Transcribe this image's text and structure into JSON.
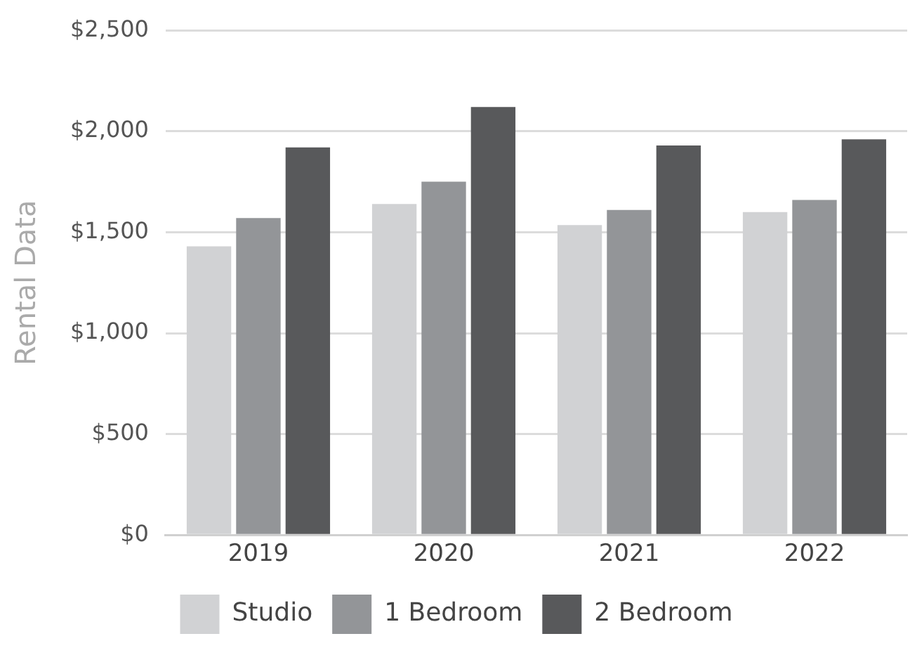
{
  "chart_data": {
    "type": "bar",
    "ylabel": "Rental Data",
    "categories": [
      "2019",
      "2020",
      "2021",
      "2022"
    ],
    "series": [
      {
        "name": "Studio",
        "color": "#d1d2d4",
        "values": [
          1430,
          1640,
          1535,
          1600
        ]
      },
      {
        "name": "1 Bedroom",
        "color": "#939598",
        "values": [
          1570,
          1750,
          1610,
          1660
        ]
      },
      {
        "name": "2 Bedroom",
        "color": "#58595b",
        "values": [
          1920,
          2120,
          1930,
          1960
        ]
      }
    ],
    "ylim": [
      0,
      2500
    ],
    "yticks": [
      {
        "value": 0,
        "label": "$0"
      },
      {
        "value": 500,
        "label": "$500"
      },
      {
        "value": 1000,
        "label": "$1,000"
      },
      {
        "value": 1500,
        "label": "$1,500"
      },
      {
        "value": 2000,
        "label": "$2,000"
      },
      {
        "value": 2500,
        "label": "$2,500"
      }
    ],
    "grid": "y",
    "legend": "bottom"
  }
}
